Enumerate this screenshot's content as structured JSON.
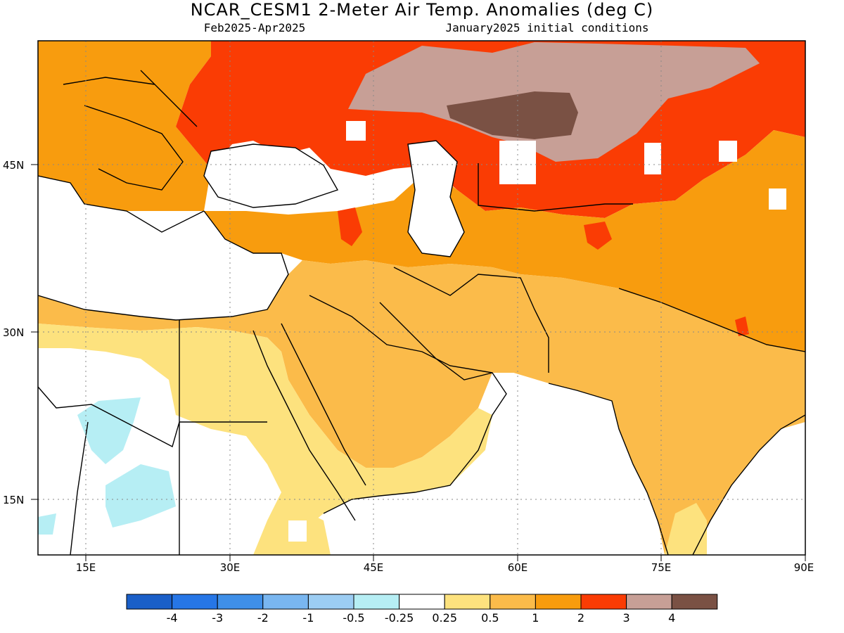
{
  "map": {
    "title": "NCAR_CESM1 2-Meter Air Temp. Anomalies (deg C)",
    "period": "Feb2025-Apr2025",
    "init": "January2025 initial conditions",
    "lat_labels": [
      "45N",
      "30N",
      "15N"
    ],
    "lon_labels": [
      "15E",
      "30E",
      "45E",
      "60E",
      "75E",
      "90E"
    ],
    "extent": {
      "lon": [
        10,
        90
      ],
      "lat": [
        9,
        55
      ]
    }
  },
  "legend": {
    "colors": [
      "#1a5fc8",
      "#2676e6",
      "#3f8fe8",
      "#79b6f0",
      "#9ccdf3",
      "#b6eef4",
      "#ffffff",
      "#fde27e",
      "#fbbb4a",
      "#f89c0e",
      "#fa3c04",
      "#c79f96",
      "#7a5144"
    ],
    "labels": [
      "-4",
      "-3",
      "-2",
      "-1",
      "-0.5",
      "-0.25",
      "0.25",
      "0.5",
      "1",
      "2",
      "3",
      "4"
    ]
  }
}
